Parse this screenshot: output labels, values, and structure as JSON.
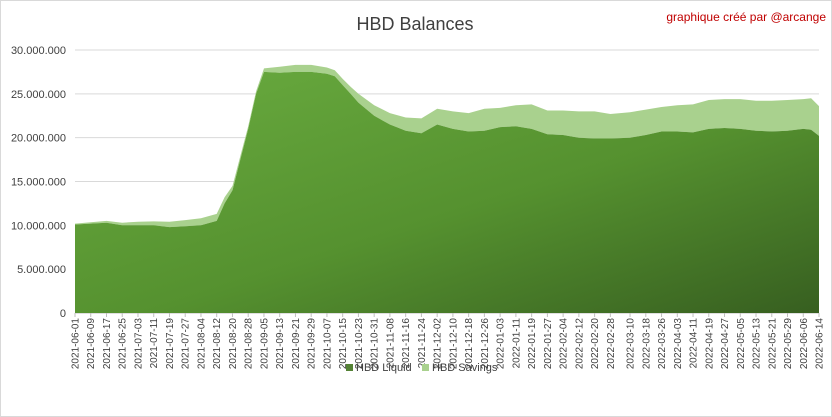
{
  "chart_data": {
    "type": "area",
    "stacked": true,
    "title": "HBD Balances",
    "annotation": "graphique créé par @arcange",
    "ylim": [
      0,
      30000000
    ],
    "yticks": [
      "0",
      "5.000.000",
      "10.000.000",
      "15.000.000",
      "20.000.000",
      "25.000.000",
      "30.000.000"
    ],
    "ytick_values": [
      0,
      5000000,
      10000000,
      15000000,
      20000000,
      25000000,
      30000000
    ],
    "grid": true,
    "legend_position": "bottom",
    "xticks": [
      "2021-06-01",
      "2021-06-09",
      "2021-06-17",
      "2021-06-25",
      "2021-07-03",
      "2021-07-11",
      "2021-07-19",
      "2021-07-27",
      "2021-08-04",
      "2021-08-12",
      "2021-08-20",
      "2021-08-28",
      "2021-09-05",
      "2021-09-13",
      "2021-09-21",
      "2021-09-29",
      "2021-10-07",
      "2021-10-15",
      "2021-10-23",
      "2021-10-31",
      "2021-11-08",
      "2021-11-16",
      "2021-11-24",
      "2021-12-02",
      "2021-12-10",
      "2021-12-18",
      "2021-12-26",
      "2022-01-03",
      "2022-01-11",
      "2022-01-19",
      "2022-01-27",
      "2022-02-04",
      "2022-02-12",
      "2022-02-20",
      "2022-02-28",
      "2022-03-10",
      "2022-03-18",
      "2022-03-26",
      "2022-04-03",
      "2022-04-11",
      "2022-04-19",
      "2022-04-27",
      "2022-05-05",
      "2022-05-13",
      "2022-05-21",
      "2022-05-29",
      "2022-06-06",
      "2022-06-14"
    ],
    "x": [
      "2021-06-01",
      "2021-06-09",
      "2021-06-17",
      "2021-06-25",
      "2021-07-03",
      "2021-07-11",
      "2021-07-19",
      "2021-07-27",
      "2021-08-04",
      "2021-08-12",
      "2021-08-16",
      "2021-08-20",
      "2021-08-24",
      "2021-08-28",
      "2021-09-01",
      "2021-09-05",
      "2021-09-13",
      "2021-09-21",
      "2021-09-29",
      "2021-10-07",
      "2021-10-11",
      "2021-10-15",
      "2021-10-19",
      "2021-10-23",
      "2021-10-31",
      "2021-11-08",
      "2021-11-16",
      "2021-11-24",
      "2021-12-02",
      "2021-12-10",
      "2021-12-18",
      "2021-12-26",
      "2022-01-03",
      "2022-01-11",
      "2022-01-19",
      "2022-01-27",
      "2022-02-04",
      "2022-02-12",
      "2022-02-20",
      "2022-02-28",
      "2022-03-10",
      "2022-03-18",
      "2022-03-26",
      "2022-04-03",
      "2022-04-11",
      "2022-04-19",
      "2022-04-27",
      "2022-05-05",
      "2022-05-13",
      "2022-05-21",
      "2022-05-29",
      "2022-06-06",
      "2022-06-10",
      "2022-06-14"
    ],
    "series": [
      {
        "name": "HBD Liquid",
        "color": "#548235",
        "values": [
          10100000,
          10200000,
          10300000,
          10000000,
          10000000,
          10000000,
          9800000,
          9900000,
          10000000,
          10500000,
          12500000,
          14000000,
          17500000,
          21000000,
          25000000,
          27500000,
          27400000,
          27500000,
          27500000,
          27300000,
          27000000,
          26000000,
          25000000,
          24000000,
          22500000,
          21500000,
          20800000,
          20500000,
          21500000,
          21000000,
          20700000,
          20800000,
          21200000,
          21300000,
          21000000,
          20400000,
          20300000,
          20000000,
          19900000,
          19900000,
          20000000,
          20300000,
          20700000,
          20700000,
          20600000,
          21000000,
          21100000,
          21000000,
          20800000,
          20700000,
          20800000,
          21000000,
          20900000,
          20200000
        ]
      },
      {
        "name": "HBD Savings",
        "color": "#a9d18e",
        "values": [
          100000,
          150000,
          200000,
          300000,
          400000,
          450000,
          600000,
          700000,
          800000,
          800000,
          700000,
          500000,
          400000,
          300000,
          300000,
          400000,
          700000,
          800000,
          800000,
          700000,
          700000,
          700000,
          800000,
          1000000,
          1200000,
          1300000,
          1500000,
          1700000,
          1800000,
          2000000,
          2100000,
          2500000,
          2200000,
          2400000,
          2800000,
          2700000,
          2800000,
          3000000,
          3100000,
          2800000,
          2900000,
          2900000,
          2800000,
          3000000,
          3200000,
          3300000,
          3300000,
          3400000,
          3400000,
          3500000,
          3500000,
          3400000,
          3600000,
          3400000
        ]
      }
    ]
  }
}
